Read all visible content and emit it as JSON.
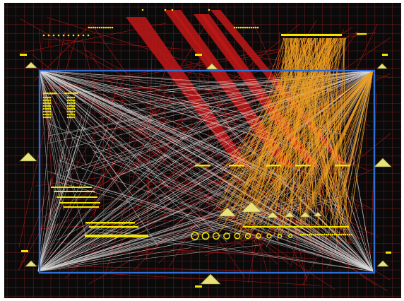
{
  "view": {
    "background": "#0a0a0a",
    "grid_color": "#7a1f1f",
    "frame_color": "#2f6fd6",
    "node_color": "#f2e600",
    "pad_color": "#e8e27a",
    "net_colors": {
      "red": "#c01818",
      "white": "#d8d8d8",
      "orange": "#f0a020"
    }
  }
}
